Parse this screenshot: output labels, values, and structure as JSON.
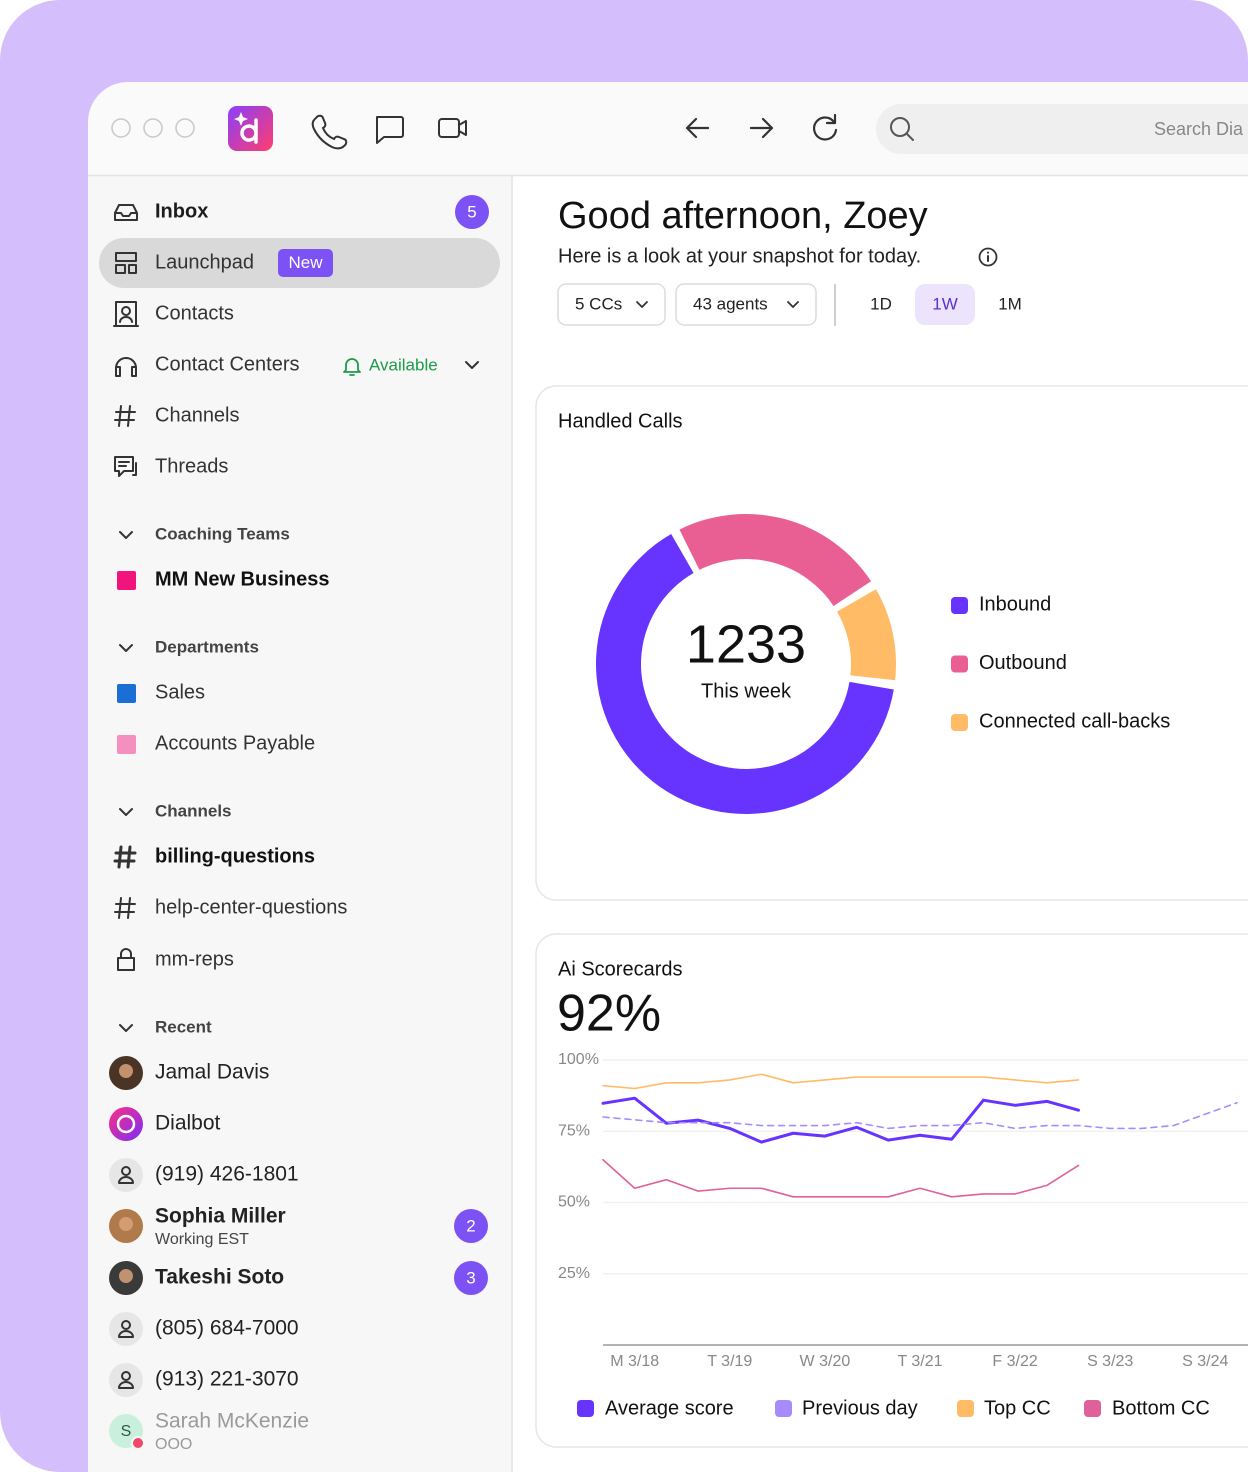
{
  "toolbar": {
    "search_placeholder": "Search Dia"
  },
  "sidebar": {
    "inbox": {
      "label": "Inbox",
      "badge": 5
    },
    "launchpad": {
      "label": "Launchpad",
      "tag": "New"
    },
    "contacts": {
      "label": "Contacts"
    },
    "contact_centers": {
      "label": "Contact Centers",
      "status": "Available"
    },
    "channels_link": {
      "label": "Channels"
    },
    "threads": {
      "label": "Threads"
    },
    "coaching_teams": {
      "title": "Coaching Teams",
      "items": [
        {
          "label": "MM New Business",
          "color": "#f0147c"
        }
      ]
    },
    "departments": {
      "title": "Departments",
      "items": [
        {
          "label": "Sales",
          "color": "#1a6fd4"
        },
        {
          "label": "Accounts Payable",
          "color": "#f48fc0"
        }
      ]
    },
    "channels": {
      "title": "Channels",
      "items": [
        {
          "label": "billing-questions"
        },
        {
          "label": "help-center-questions"
        },
        {
          "label": "mm-reps"
        }
      ]
    },
    "recent": {
      "title": "Recent",
      "items": [
        {
          "name": "Jamal Davis"
        },
        {
          "name": "Dialbot"
        },
        {
          "name": "(919) 426-1801"
        },
        {
          "name": "Sophia Miller",
          "status": "Working EST",
          "badge": 2
        },
        {
          "name": "Takeshi Soto",
          "badge": 3
        },
        {
          "name": "(805) 684-7000"
        },
        {
          "name": "(913) 221-3070"
        },
        {
          "name": "Sarah McKenzie",
          "status": "OOO",
          "initial": "S"
        }
      ]
    }
  },
  "main": {
    "greeting": "Good afternoon, Zoey",
    "subtitle": "Here is a look at your snapshot for today.",
    "filters": [
      "5 CCs",
      "43 agents"
    ],
    "ranges": [
      "1D",
      "1W",
      "1M"
    ],
    "active_range": "1W"
  },
  "chart_data": [
    {
      "type": "pie",
      "donut": true,
      "title": "Handled Calls",
      "total": 1233,
      "total_label": "This week",
      "categories": [
        "Inbound",
        "Outbound",
        "Connected call-backs"
      ],
      "values": [
        801,
        296,
        136
      ],
      "colors": [
        "#6633ff",
        "#ea5f93",
        "#ffbb66"
      ]
    },
    {
      "type": "line",
      "title": "Ai Scorecards",
      "headline": "92%",
      "categories": [
        null,
        "M 3/18",
        null,
        null,
        "T 3/19",
        null,
        null,
        "W 3/20",
        null,
        null,
        "T 3/21",
        null,
        null,
        "F 3/22",
        null,
        null,
        "S 3/23",
        null,
        null,
        "S 3/24",
        null
      ],
      "ylim": [
        0,
        100
      ],
      "yticks": [
        {
          "value": 25,
          "label": "25%"
        },
        {
          "value": 50,
          "label": "50%"
        },
        {
          "value": 75,
          "label": "75%"
        },
        {
          "value": 100,
          "label": "100%"
        }
      ],
      "grid": true,
      "series": [
        {
          "name": "Average score",
          "color": "#6633ff",
          "values": [
            84.8,
            86.6,
            77.8,
            78.9,
            76,
            71.2,
            74.3,
            73.3,
            76.4,
            71.9,
            73.6,
            72.2,
            85.9,
            84.1,
            85.5,
            82.4,
            null,
            null,
            null,
            null,
            null
          ]
        },
        {
          "name": "Previous day",
          "color": "#a78bfa",
          "dashed": true,
          "values": [
            80,
            79,
            78,
            78,
            78,
            77,
            77,
            77,
            78,
            76,
            77,
            77,
            78,
            76,
            77,
            77,
            76,
            76,
            77,
            81,
            85
          ]
        },
        {
          "name": "Top CC",
          "color": "#ffbb66",
          "values": [
            91,
            90,
            92,
            92,
            93,
            95,
            92,
            93,
            94,
            94,
            94,
            94,
            94,
            93,
            92,
            93,
            null,
            null,
            null,
            null,
            null
          ]
        },
        {
          "name": "Bottom CC",
          "color": "#e0609a",
          "values": [
            65,
            55,
            58,
            54,
            55,
            55,
            52,
            52,
            52,
            52,
            55,
            52,
            53,
            53,
            56,
            63,
            null,
            null,
            null,
            null,
            null
          ]
        }
      ]
    }
  ]
}
